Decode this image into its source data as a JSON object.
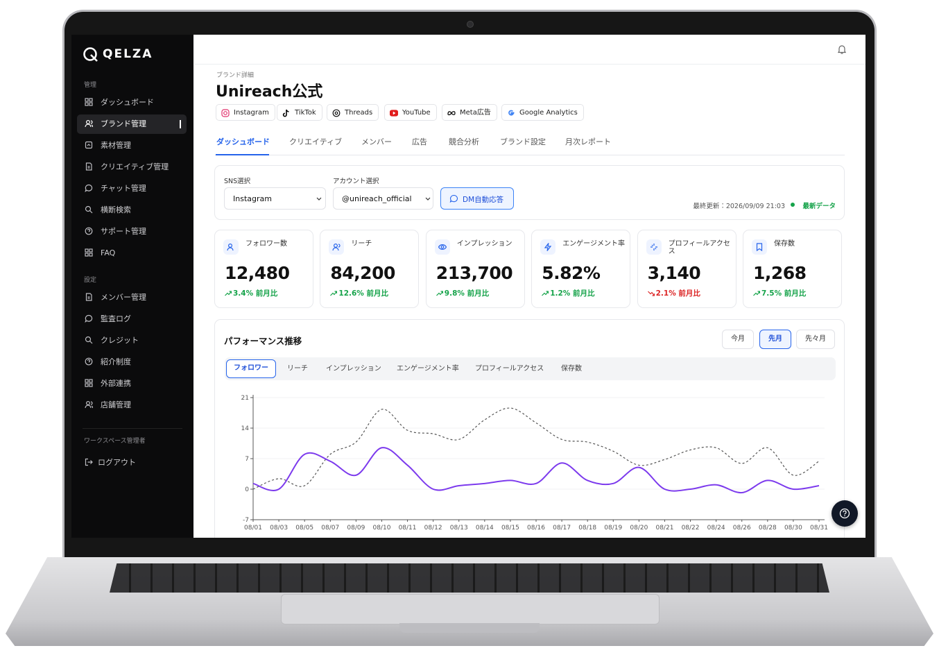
{
  "sidebar": {
    "logo": "QELZA",
    "sections": [
      {
        "title": "管理",
        "items": [
          {
            "label": "ダッシュボード"
          },
          {
            "label": "ブランド管理",
            "active": true
          },
          {
            "label": "素材管理"
          },
          {
            "label": "クリエイティブ管理"
          },
          {
            "label": "チャット管理"
          },
          {
            "label": "横断検索"
          },
          {
            "label": "サポート管理"
          },
          {
            "label": "FAQ"
          }
        ]
      },
      {
        "title": "設定",
        "items": [
          {
            "label": "メンバー管理"
          },
          {
            "label": "監査ログ"
          },
          {
            "label": "クレジット"
          },
          {
            "label": "紹介制度"
          },
          {
            "label": "外部連携"
          },
          {
            "label": "店舗管理"
          }
        ]
      }
    ],
    "workspace_role": "ワークスペース管理者",
    "logout": "ログアウト"
  },
  "header": {
    "breadcrumb": "ブランド詳細",
    "title": "Unireach公式",
    "platforms": [
      "Instagram",
      "TikTok",
      "Threads",
      "YouTube",
      "Meta広告",
      "Google Analytics"
    ]
  },
  "tabs": [
    {
      "label": "ダッシュボード",
      "active": true
    },
    {
      "label": "クリエイティブ"
    },
    {
      "label": "メンバー"
    },
    {
      "label": "広告"
    },
    {
      "label": "競合分析"
    },
    {
      "label": "ブランド設定"
    },
    {
      "label": "月次レポート"
    }
  ],
  "filters": {
    "sns_label": "SNS選択",
    "sns_value": "Instagram",
    "account_label": "アカウント選択",
    "account_value": "@unireach_official",
    "dm_button": "DM自動応答",
    "last_updated": "最終更新：2026/09/09 21:03",
    "status": "最新データ"
  },
  "metrics": [
    {
      "label": "フォロワー数",
      "value": "12,480",
      "change": "3.4%",
      "trend": "up",
      "compare": "前月比"
    },
    {
      "label": "リーチ",
      "value": "84,200",
      "change": "12.6%",
      "trend": "up",
      "compare": "前月比"
    },
    {
      "label": "インプレッション",
      "value": "213,700",
      "change": "9.8%",
      "trend": "up",
      "compare": "前月比"
    },
    {
      "label": "エンゲージメント率",
      "value": "5.82%",
      "change": "1.2%",
      "trend": "up",
      "compare": "前月比"
    },
    {
      "label": "プロフィールアクセス",
      "value": "3,140",
      "change": "2.1%",
      "trend": "down",
      "compare": "前月比"
    },
    {
      "label": "保存数",
      "value": "1,268",
      "change": "7.5%",
      "trend": "up",
      "compare": "前月比"
    }
  ],
  "performance": {
    "periods": [
      {
        "label": "今月"
      },
      {
        "label": "先月",
        "active": true
      },
      {
        "label": "先々月"
      }
    ],
    "metric_tabs": [
      {
        "label": "フォロワー",
        "active": true
      },
      {
        "label": "リーチ"
      },
      {
        "label": "インプレッション"
      },
      {
        "label": "エンゲージメント率"
      },
      {
        "label": "プロフィールアクセス"
      },
      {
        "label": "保存数"
      }
    ]
  },
  "chart_data": {
    "type": "line",
    "title": "パフォーマンス推移",
    "categories": [
      "08/01",
      "08/03",
      "08/05",
      "08/07",
      "08/09",
      "08/10",
      "08/11",
      "08/12",
      "08/13",
      "08/14",
      "08/15",
      "08/16",
      "08/17",
      "08/18",
      "08/19",
      "08/20",
      "08/21",
      "08/22",
      "08/24",
      "08/26",
      "08/28",
      "08/30",
      "08/31"
    ],
    "series": [
      {
        "color": "#7c3aed",
        "values": [
          1.3,
          0,
          8,
          6.4,
          3.2,
          9.5,
          5.5,
          0,
          0.8,
          1.3,
          2,
          1.3,
          6,
          2,
          1.3,
          5,
          0,
          0,
          1,
          -0.8,
          2,
          0,
          0.8
        ]
      },
      {
        "color": "#555555",
        "dashed": true,
        "values": [
          0,
          2.4,
          0.8,
          8,
          10.8,
          18.3,
          13.5,
          12.7,
          11.4,
          15.9,
          18.6,
          15.2,
          11.4,
          10.8,
          8.7,
          5.5,
          6.8,
          9,
          9.5,
          5.9,
          9.5,
          3.2,
          6.4
        ]
      }
    ],
    "ylim": [
      -7,
      21
    ],
    "yticks": [
      -7,
      0,
      7,
      14,
      21
    ],
    "grid": true
  }
}
